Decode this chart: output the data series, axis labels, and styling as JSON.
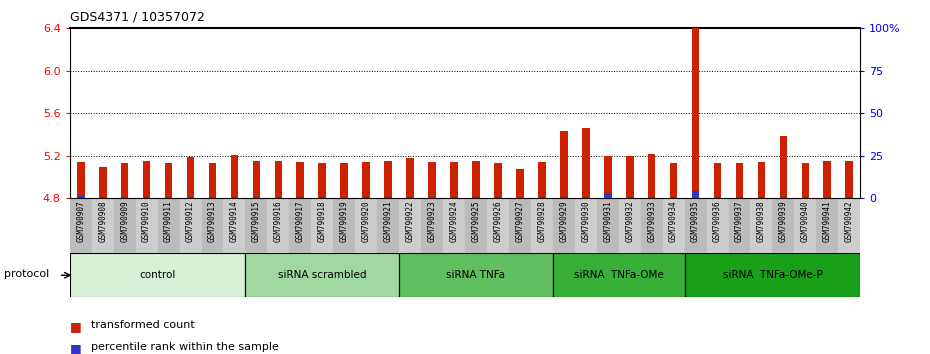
{
  "title": "GDS4371 / 10357072",
  "samples": [
    "GSM790907",
    "GSM790908",
    "GSM790909",
    "GSM790910",
    "GSM790911",
    "GSM790912",
    "GSM790913",
    "GSM790914",
    "GSM790915",
    "GSM790916",
    "GSM790917",
    "GSM790918",
    "GSM790919",
    "GSM790920",
    "GSM790921",
    "GSM790922",
    "GSM790923",
    "GSM790924",
    "GSM790925",
    "GSM790926",
    "GSM790927",
    "GSM790928",
    "GSM790929",
    "GSM790930",
    "GSM790931",
    "GSM790932",
    "GSM790933",
    "GSM790934",
    "GSM790935",
    "GSM790936",
    "GSM790937",
    "GSM790938",
    "GSM790939",
    "GSM790940",
    "GSM790941",
    "GSM790942"
  ],
  "red_values": [
    5.14,
    5.09,
    5.13,
    5.15,
    5.13,
    5.19,
    5.13,
    5.21,
    5.15,
    5.15,
    5.14,
    5.13,
    5.13,
    5.14,
    5.15,
    5.18,
    5.14,
    5.14,
    5.15,
    5.13,
    5.08,
    5.14,
    5.43,
    5.46,
    5.2,
    5.2,
    5.22,
    5.13,
    6.55,
    5.13,
    5.13,
    5.14,
    5.39,
    5.13,
    5.15,
    5.15
  ],
  "blue_percentiles": [
    2,
    1,
    1,
    1,
    1,
    1,
    1,
    1,
    1,
    1,
    1,
    1,
    1,
    1,
    1,
    1,
    1,
    1,
    1,
    1,
    1,
    1,
    1,
    1,
    3,
    1,
    1,
    1,
    4,
    1,
    1,
    1,
    1,
    1,
    1,
    1
  ],
  "groups": [
    {
      "label": "control",
      "start": 0,
      "end": 8,
      "color": "#d8f0d8"
    },
    {
      "label": "siRNA scrambled",
      "start": 8,
      "end": 15,
      "color": "#a0d8a0"
    },
    {
      "label": "siRNA TNFa",
      "start": 15,
      "end": 22,
      "color": "#60c060"
    },
    {
      "label": "siRNA  TNFa-OMe",
      "start": 22,
      "end": 28,
      "color": "#38b038"
    },
    {
      "label": "siRNA  TNFa-OMe-P",
      "start": 28,
      "end": 36,
      "color": "#18a018"
    }
  ],
  "ylim_left": [
    4.8,
    6.4
  ],
  "ylim_right": [
    0,
    100
  ],
  "yticks_left": [
    4.8,
    5.2,
    5.6,
    6.0,
    6.4
  ],
  "yticks_right": [
    0,
    25,
    50,
    75,
    100
  ],
  "bar_color": "#cc2200",
  "blue_color": "#3333cc",
  "protocol_label": "protocol"
}
